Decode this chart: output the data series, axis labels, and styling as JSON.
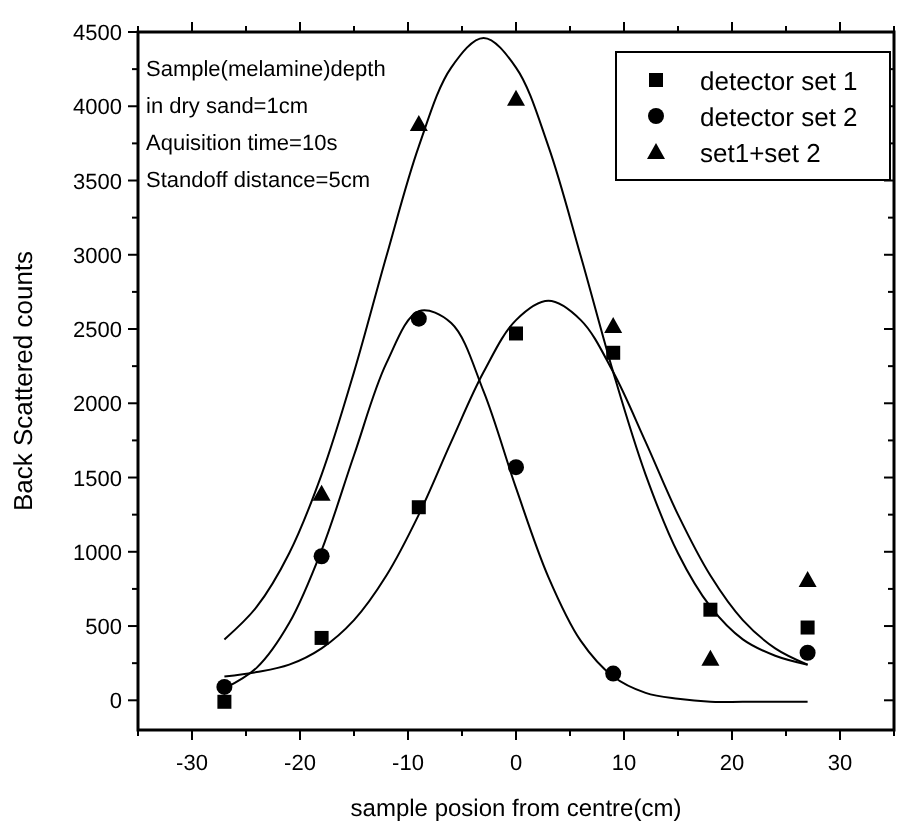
{
  "chart_data": {
    "type": "scatter",
    "xlabel": "sample posion from centre(cm)",
    "ylabel": "Back Scattered counts",
    "annotations": [
      "Sample(melamine)depth",
      "in dry sand=1cm",
      "Aquisition time=10s",
      "Standoff distance=5cm"
    ],
    "xlim": [
      -35,
      35
    ],
    "ylim": [
      -200,
      4500
    ],
    "xticks": [
      {
        "value": -35,
        "label": null
      },
      -30,
      {
        "value": -25,
        "label": null
      },
      -20,
      {
        "value": -15,
        "label": null
      },
      -10,
      {
        "value": -5,
        "label": null
      },
      0,
      {
        "value": 5,
        "label": null
      },
      10,
      {
        "value": 15,
        "label": null
      },
      20,
      {
        "value": 25,
        "label": null
      },
      30,
      {
        "value": 35,
        "label": null
      }
    ],
    "yticks": [
      0,
      {
        "value": 250,
        "label": null
      },
      500,
      {
        "value": 750,
        "label": null
      },
      1000,
      {
        "value": 1250,
        "label": null
      },
      1500,
      {
        "value": 1750,
        "label": null
      },
      2000,
      {
        "value": 2250,
        "label": null
      },
      2500,
      {
        "value": 2750,
        "label": null
      },
      3000,
      {
        "value": 3250,
        "label": null
      },
      3500,
      {
        "value": 3750,
        "label": null
      },
      4000,
      {
        "value": 4250,
        "label": null
      },
      4500
    ],
    "grid": false,
    "legend": "top right",
    "series": [
      {
        "name": "detector set 1",
        "marker": "square",
        "color": "#000000",
        "x": [
          -27,
          -18,
          -9,
          0,
          9,
          18,
          27
        ],
        "values": [
          -10,
          420,
          1300,
          2470,
          2340,
          610,
          490
        ]
      },
      {
        "name": "detector set 2",
        "marker": "circle",
        "color": "#000000",
        "x": [
          -27,
          -18,
          -9,
          0,
          9,
          27
        ],
        "values": [
          90,
          970,
          2570,
          1570,
          180,
          320
        ]
      },
      {
        "name": "set1+set 2",
        "marker": "triangle",
        "color": "#000000",
        "x": [
          -18,
          -9,
          0,
          9,
          18,
          27
        ],
        "values": [
          1390,
          3880,
          4050,
          2520,
          280,
          810
        ]
      },
      {
        "type": "line",
        "marker": "none",
        "line_style": "solid",
        "color": "#000000",
        "x": [
          -27,
          -24,
          -21,
          -18,
          -15,
          -12,
          -9,
          -6,
          -3,
          0,
          3,
          6,
          9,
          12,
          15,
          18,
          21,
          24,
          27
        ],
        "values": [
          160,
          190,
          240,
          350,
          540,
          840,
          1250,
          1740,
          2210,
          2560,
          2690,
          2560,
          2210,
          1740,
          1250,
          840,
          540,
          350,
          240
        ]
      },
      {
        "type": "line",
        "marker": "none",
        "line_style": "solid",
        "color": "#000000",
        "x": [
          -27,
          -24,
          -21,
          -18,
          -15,
          -12,
          -9,
          -6,
          -3,
          0,
          3,
          6,
          9,
          12,
          15,
          18,
          21,
          24,
          27
        ],
        "values": [
          80,
          220,
          520,
          1010,
          1650,
          2270,
          2620,
          2540,
          2080,
          1430,
          830,
          400,
          160,
          50,
          10,
          -10,
          -10,
          -10,
          -10
        ]
      },
      {
        "type": "line",
        "marker": "none",
        "line_style": "solid",
        "color": "#000000",
        "x": [
          -27,
          -24,
          -21,
          -18,
          -15,
          -12,
          -9,
          -6,
          -3,
          0,
          3,
          6,
          9,
          12,
          15,
          18,
          21,
          24,
          27
        ],
        "values": [
          410,
          630,
          990,
          1520,
          2210,
          2990,
          3730,
          4260,
          4460,
          4260,
          3730,
          2990,
          2210,
          1520,
          990,
          630,
          410,
          300,
          240
        ]
      }
    ]
  }
}
